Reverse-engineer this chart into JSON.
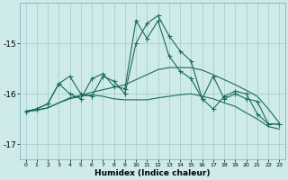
{
  "xlabel": "Humidex (Indice chaleur)",
  "background_color": "#ceeaea",
  "grid_color": "#aacfcf",
  "line_color": "#1a6b5a",
  "xlim": [
    -0.5,
    23.5
  ],
  "ylim": [
    -17.3,
    -14.2
  ],
  "xticks": [
    0,
    1,
    2,
    3,
    4,
    5,
    6,
    7,
    8,
    9,
    10,
    11,
    12,
    13,
    14,
    15,
    16,
    17,
    18,
    19,
    20,
    21,
    22,
    23
  ],
  "yticks": [
    -17,
    -16,
    -15
  ],
  "series1_x": [
    0,
    1,
    2,
    3,
    4,
    5,
    6,
    7,
    8,
    9,
    10,
    11,
    12,
    13,
    14,
    15,
    16,
    17,
    18,
    19,
    20,
    21,
    22,
    23
  ],
  "series1_y": [
    -16.35,
    -16.3,
    -16.2,
    -15.8,
    -15.65,
    -16.0,
    -16.05,
    -15.65,
    -15.75,
    -16.0,
    -15.0,
    -14.6,
    -14.45,
    -14.85,
    -15.15,
    -15.35,
    -16.1,
    -15.65,
    -16.1,
    -16.0,
    -16.1,
    -16.15,
    -16.6,
    -16.6
  ],
  "series2_x": [
    0,
    1,
    2,
    3,
    4,
    5,
    6,
    7,
    8,
    9,
    10,
    11,
    12,
    13,
    14,
    15,
    16,
    17,
    18,
    19,
    20,
    21,
    22,
    23
  ],
  "series2_y": [
    -16.35,
    -16.3,
    -16.2,
    -15.8,
    -16.0,
    -16.1,
    -15.7,
    -15.6,
    -15.85,
    -15.9,
    -14.55,
    -14.9,
    -14.55,
    -15.25,
    -15.55,
    -15.7,
    -16.1,
    -16.3,
    -16.05,
    -15.95,
    -16.0,
    -16.4,
    -16.6,
    -16.6
  ],
  "series3_x": [
    0,
    1,
    2,
    3,
    4,
    5,
    6,
    7,
    8,
    9,
    10,
    11,
    12,
    13,
    14,
    15,
    16,
    17,
    18,
    19,
    20,
    21,
    22,
    23
  ],
  "series3_y": [
    -16.35,
    -16.32,
    -16.28,
    -16.18,
    -16.08,
    -16.03,
    -15.97,
    -15.92,
    -15.87,
    -15.82,
    -15.72,
    -15.62,
    -15.52,
    -15.48,
    -15.48,
    -15.48,
    -15.53,
    -15.62,
    -15.72,
    -15.82,
    -15.93,
    -16.05,
    -16.3,
    -16.58
  ],
  "series4_x": [
    0,
    1,
    2,
    3,
    4,
    5,
    6,
    7,
    8,
    9,
    10,
    11,
    12,
    13,
    14,
    15,
    16,
    17,
    18,
    19,
    20,
    21,
    22,
    23
  ],
  "series4_y": [
    -16.35,
    -16.33,
    -16.28,
    -16.18,
    -16.1,
    -16.05,
    -16.02,
    -16.05,
    -16.1,
    -16.12,
    -16.12,
    -16.12,
    -16.08,
    -16.05,
    -16.02,
    -16.0,
    -16.05,
    -16.1,
    -16.18,
    -16.25,
    -16.38,
    -16.5,
    -16.65,
    -16.7
  ]
}
